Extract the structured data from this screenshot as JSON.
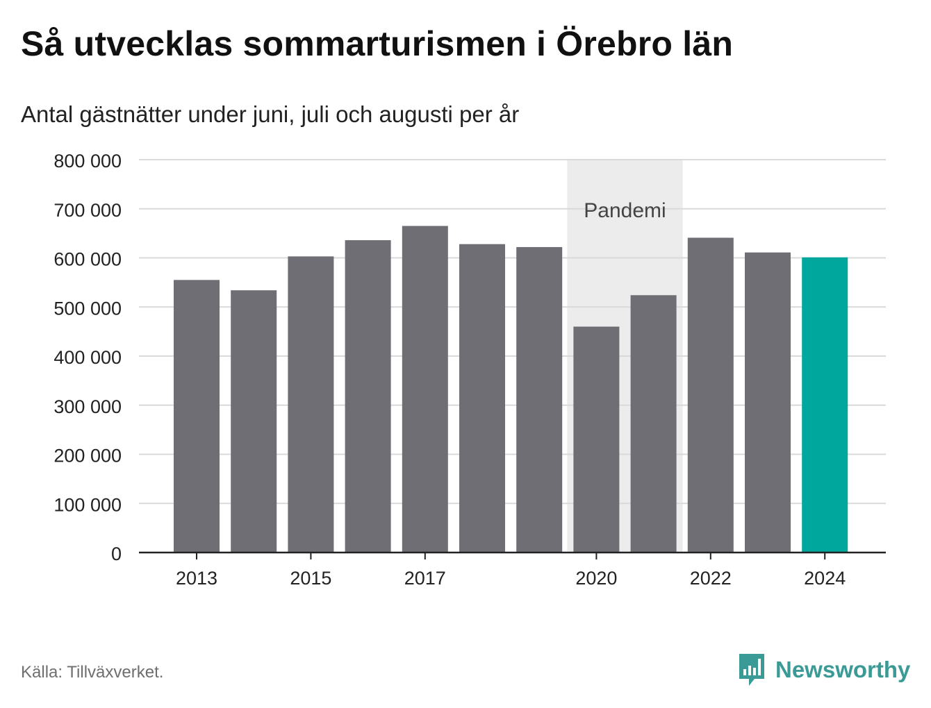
{
  "title": "Så utvecklas sommarturismen i Örebro län",
  "subtitle": "Antal gästnätter under juni, juli och augusti per år",
  "source": "Källa: Tillväxverket.",
  "brand": {
    "name": "Newsworthy",
    "logo_icon": "newsworthy-logo-icon"
  },
  "colors": {
    "bar": "#6f6e74",
    "highlight": "#00a79d",
    "band": "#ececec",
    "grid": "#d9d9d9",
    "brand": "#3a9a96"
  },
  "chart_data": {
    "type": "bar",
    "title": "Så utvecklas sommarturismen i Örebro län",
    "subtitle": "Antal gästnätter under juni, juli och augusti per år",
    "xlabel": "",
    "ylabel": "",
    "categories": [
      "2013",
      "2014",
      "2015",
      "2016",
      "2017",
      "2018",
      "2019",
      "2020",
      "2021",
      "2022",
      "2023",
      "2024"
    ],
    "values": [
      555000,
      534000,
      603000,
      636000,
      665000,
      628000,
      622000,
      460000,
      524000,
      641000,
      611000,
      601000
    ],
    "highlight_category": "2024",
    "ylim": [
      0,
      800000
    ],
    "yticks": [
      0,
      100000,
      200000,
      300000,
      400000,
      500000,
      600000,
      700000,
      800000
    ],
    "ytick_labels": [
      "0",
      "100 000",
      "200 000",
      "300 000",
      "400 000",
      "500 000",
      "600 000",
      "700 000",
      "800 000"
    ],
    "xtick_labels": [
      "2013",
      "2015",
      "2017",
      "2020",
      "2022",
      "2024"
    ],
    "grid": true,
    "legend": "none",
    "annotation": {
      "label": "Pandemi",
      "from": "2020",
      "to": "2021"
    }
  }
}
